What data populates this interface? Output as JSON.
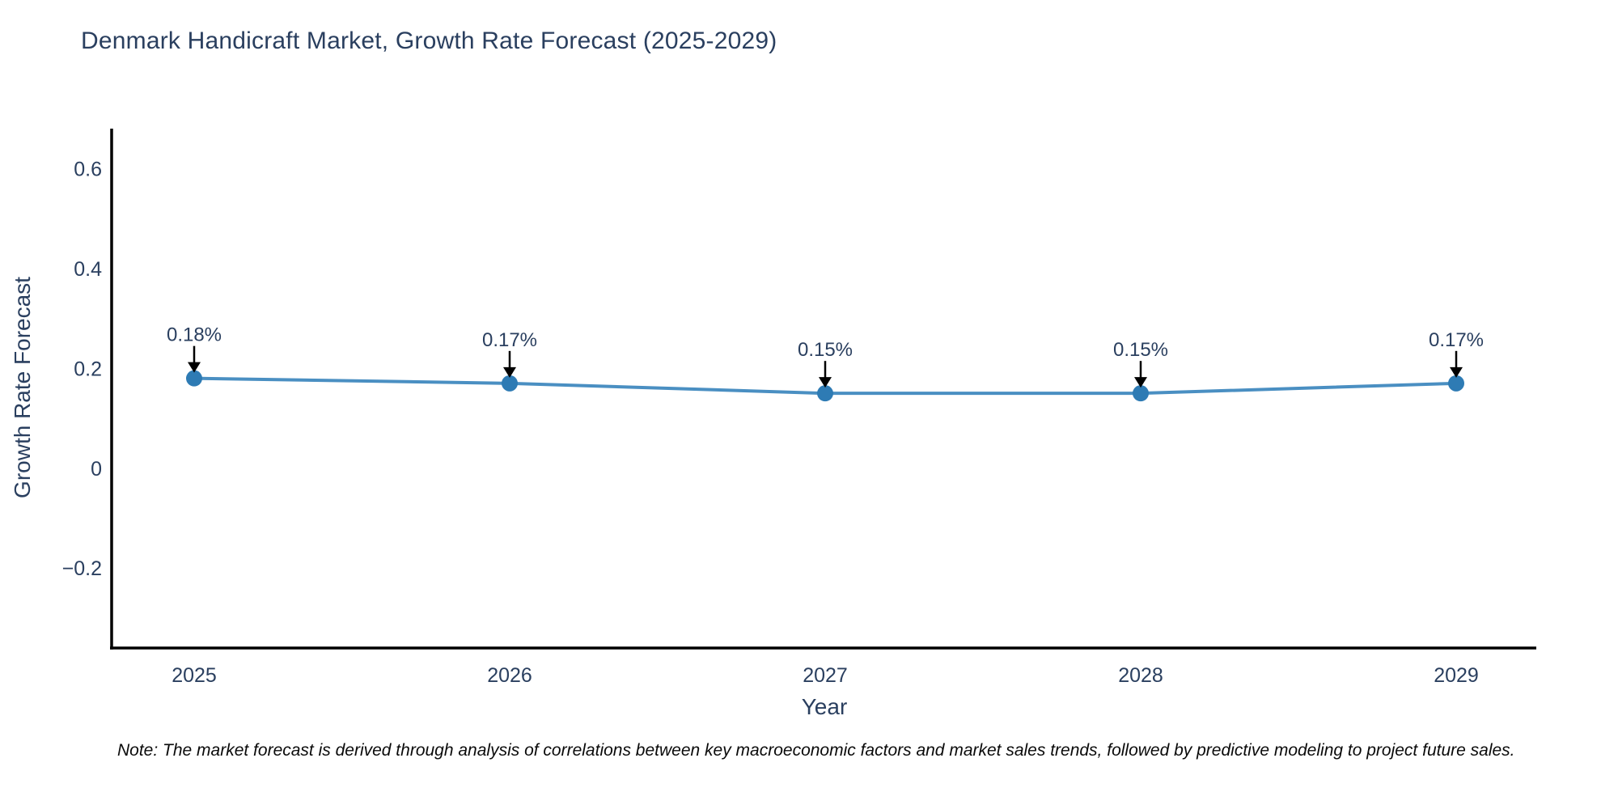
{
  "chart_data": {
    "type": "line",
    "title": "Denmark Handicraft Market, Growth Rate Forecast (2025-2029)",
    "xlabel": "Year",
    "ylabel": "Growth Rate Forecast",
    "categories": [
      "2025",
      "2026",
      "2027",
      "2028",
      "2029"
    ],
    "values": [
      0.18,
      0.17,
      0.15,
      0.15,
      0.17
    ],
    "point_labels": [
      "0.18%",
      "0.17%",
      "0.15%",
      "0.15%",
      "0.17%"
    ],
    "yticks": [
      0.6,
      0.4,
      0.2,
      0,
      -0.2
    ],
    "ytick_labels": [
      "0.6",
      "0.4",
      "0.2",
      "0",
      "−0.2"
    ],
    "ylim": [
      -0.36,
      0.68
    ],
    "grid": false,
    "legend": "none",
    "line_color": "#4a8fc2",
    "marker_color": "#2e7bb4",
    "arrow_color": "#000000",
    "axis_color": "#000000",
    "note": "Note: The market forecast is derived through analysis of correlations between key macroeconomic factors and market sales trends, followed by predictive modeling to project future sales."
  }
}
